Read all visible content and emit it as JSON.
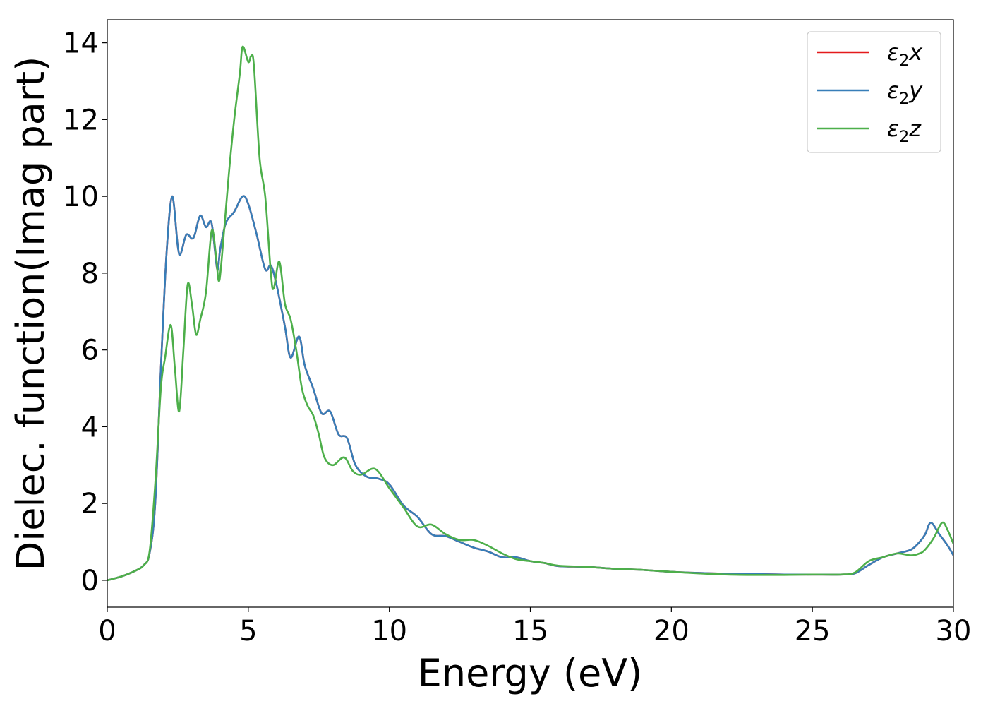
{
  "chart_data": {
    "type": "line",
    "xlabel": "Energy (eV)",
    "ylabel": "Dielec. function(Imag part)",
    "xlim": [
      0,
      30
    ],
    "ylim": [
      -0.7,
      14.6
    ],
    "xticks": [
      0,
      5,
      10,
      15,
      20,
      25,
      30
    ],
    "yticks": [
      0,
      2,
      4,
      6,
      8,
      10,
      12,
      14
    ],
    "grid": false,
    "legend_position": "top-right",
    "series": [
      {
        "name": "ε2x",
        "label_base": "ε",
        "label_sub": "2",
        "label_suffix": "x",
        "color": "#e41a1c",
        "x": [
          0,
          0.5,
          1.0,
          1.3,
          1.5,
          1.7,
          1.9,
          2.1,
          2.3,
          2.5,
          2.6,
          2.8,
          3.0,
          3.1,
          3.3,
          3.5,
          3.7,
          3.9,
          4.0,
          4.2,
          4.5,
          4.8,
          5.0,
          5.3,
          5.6,
          5.8,
          6.0,
          6.3,
          6.5,
          6.8,
          7.0,
          7.3,
          7.6,
          7.9,
          8.2,
          8.5,
          8.8,
          9.2,
          9.6,
          10.0,
          10.5,
          11.0,
          11.5,
          12.0,
          12.5,
          13.0,
          13.5,
          14.0,
          14.5,
          15.0,
          15.5,
          16.0,
          17.0,
          18.0,
          19.0,
          20.0,
          21.0,
          22.0,
          23.0,
          24.0,
          25.0,
          26.0,
          26.5,
          27.0,
          27.5,
          28.0,
          28.5,
          28.8,
          29.0,
          29.2,
          29.5,
          29.8,
          30.0
        ],
        "values": [
          0.0,
          0.1,
          0.25,
          0.4,
          0.7,
          2.0,
          5.5,
          8.5,
          10.0,
          8.7,
          8.5,
          9.0,
          8.9,
          9.0,
          9.5,
          9.2,
          9.3,
          8.1,
          8.6,
          9.3,
          9.6,
          10.0,
          9.8,
          9.0,
          8.1,
          8.2,
          7.7,
          6.6,
          5.8,
          6.35,
          5.6,
          5.0,
          4.35,
          4.4,
          3.8,
          3.7,
          3.0,
          2.7,
          2.65,
          2.5,
          1.95,
          1.65,
          1.2,
          1.15,
          1.0,
          0.85,
          0.75,
          0.6,
          0.6,
          0.5,
          0.45,
          0.37,
          0.35,
          0.3,
          0.27,
          0.22,
          0.19,
          0.17,
          0.16,
          0.15,
          0.15,
          0.15,
          0.18,
          0.4,
          0.6,
          0.7,
          0.8,
          1.0,
          1.2,
          1.5,
          1.2,
          0.9,
          0.65
        ]
      },
      {
        "name": "ε2y",
        "label_base": "ε",
        "label_sub": "2",
        "label_suffix": "y",
        "color": "#377eb8",
        "x": [
          0,
          0.5,
          1.0,
          1.3,
          1.5,
          1.7,
          1.9,
          2.1,
          2.3,
          2.5,
          2.6,
          2.8,
          3.0,
          3.1,
          3.3,
          3.5,
          3.7,
          3.9,
          4.0,
          4.2,
          4.5,
          4.8,
          5.0,
          5.3,
          5.6,
          5.8,
          6.0,
          6.3,
          6.5,
          6.8,
          7.0,
          7.3,
          7.6,
          7.9,
          8.2,
          8.5,
          8.8,
          9.2,
          9.6,
          10.0,
          10.5,
          11.0,
          11.5,
          12.0,
          12.5,
          13.0,
          13.5,
          14.0,
          14.5,
          15.0,
          15.5,
          16.0,
          17.0,
          18.0,
          19.0,
          20.0,
          21.0,
          22.0,
          23.0,
          24.0,
          25.0,
          26.0,
          26.5,
          27.0,
          27.5,
          28.0,
          28.5,
          28.8,
          29.0,
          29.2,
          29.5,
          29.8,
          30.0
        ],
        "values": [
          0.0,
          0.1,
          0.25,
          0.4,
          0.7,
          2.0,
          5.5,
          8.5,
          10.0,
          8.7,
          8.5,
          9.0,
          8.9,
          9.0,
          9.5,
          9.2,
          9.3,
          8.1,
          8.6,
          9.3,
          9.6,
          10.0,
          9.8,
          9.0,
          8.1,
          8.2,
          7.7,
          6.6,
          5.8,
          6.35,
          5.6,
          5.0,
          4.35,
          4.4,
          3.8,
          3.7,
          3.0,
          2.7,
          2.65,
          2.5,
          1.95,
          1.65,
          1.2,
          1.15,
          1.0,
          0.85,
          0.75,
          0.6,
          0.6,
          0.5,
          0.45,
          0.37,
          0.35,
          0.3,
          0.27,
          0.22,
          0.19,
          0.17,
          0.16,
          0.15,
          0.15,
          0.15,
          0.18,
          0.4,
          0.6,
          0.7,
          0.8,
          1.0,
          1.2,
          1.5,
          1.2,
          0.9,
          0.65
        ]
      },
      {
        "name": "ε2z",
        "label_base": "ε",
        "label_sub": "2",
        "label_suffix": "z",
        "color": "#4daf4a",
        "x": [
          0,
          0.5,
          1.0,
          1.3,
          1.5,
          1.7,
          1.9,
          2.05,
          2.25,
          2.4,
          2.55,
          2.7,
          2.85,
          3.0,
          3.15,
          3.3,
          3.5,
          3.7,
          3.85,
          3.95,
          4.05,
          4.3,
          4.5,
          4.7,
          4.8,
          5.0,
          5.1,
          5.2,
          5.4,
          5.6,
          5.8,
          5.9,
          6.1,
          6.3,
          6.5,
          6.7,
          6.9,
          7.1,
          7.3,
          7.5,
          7.7,
          8.0,
          8.4,
          8.7,
          9.0,
          9.5,
          10.0,
          10.5,
          11.0,
          11.5,
          12.0,
          12.5,
          13.0,
          13.5,
          14.0,
          14.5,
          15.0,
          15.5,
          16.0,
          17.0,
          18.0,
          19.0,
          20.0,
          21.0,
          22.0,
          23.0,
          24.0,
          25.0,
          26.0,
          26.5,
          27.0,
          27.5,
          28.0,
          28.5,
          28.8,
          29.0,
          29.3,
          29.6,
          29.8,
          30.0
        ],
        "values": [
          0.0,
          0.1,
          0.25,
          0.4,
          0.75,
          2.5,
          5.0,
          5.8,
          6.65,
          5.5,
          4.4,
          6.0,
          7.7,
          7.2,
          6.4,
          6.8,
          7.5,
          9.1,
          8.5,
          7.8,
          8.3,
          10.5,
          12.0,
          13.2,
          13.9,
          13.5,
          13.65,
          13.4,
          11.0,
          10.0,
          8.0,
          7.6,
          8.3,
          7.2,
          6.8,
          6.0,
          5.0,
          4.55,
          4.3,
          3.8,
          3.2,
          3.0,
          3.2,
          2.85,
          2.75,
          2.9,
          2.4,
          1.9,
          1.4,
          1.45,
          1.2,
          1.05,
          1.05,
          0.9,
          0.7,
          0.55,
          0.5,
          0.45,
          0.38,
          0.35,
          0.3,
          0.27,
          0.22,
          0.18,
          0.15,
          0.14,
          0.14,
          0.15,
          0.15,
          0.2,
          0.5,
          0.6,
          0.7,
          0.65,
          0.7,
          0.8,
          1.1,
          1.5,
          1.3,
          0.95
        ]
      }
    ]
  }
}
